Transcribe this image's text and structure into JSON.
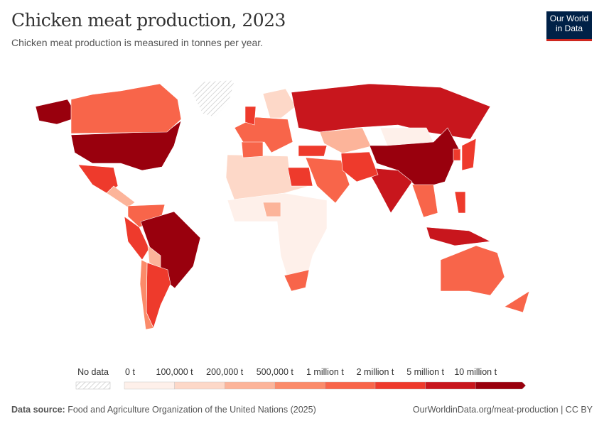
{
  "header": {
    "title": "Chicken meat production, 2023",
    "subtitle": "Chicken meat production is measured in tonnes per year.",
    "logo": "Our World in Data"
  },
  "legend": {
    "no_data_label": "No data",
    "labels": [
      "0 t",
      "100,000 t",
      "200,000 t",
      "500,000 t",
      "1 million t",
      "2 million t",
      "5 million t",
      "10 million t"
    ],
    "colors": [
      "#fef0ea",
      "#fdd8c8",
      "#fcb49a",
      "#fb8b6a",
      "#f8654a",
      "#ee3a2c",
      "#c8161d",
      "#99000d"
    ],
    "no_data_color": "#e0e0e0"
  },
  "map": {
    "regions": [
      {
        "name": "united-states",
        "bin": 7
      },
      {
        "name": "alaska",
        "bin": 7
      },
      {
        "name": "canada",
        "bin": 4
      },
      {
        "name": "greenland",
        "bin": null
      },
      {
        "name": "mexico",
        "bin": 5
      },
      {
        "name": "central-america",
        "bin": 2
      },
      {
        "name": "colombia-venezuela",
        "bin": 4
      },
      {
        "name": "brazil",
        "bin": 7
      },
      {
        "name": "peru",
        "bin": 5
      },
      {
        "name": "bolivia",
        "bin": 2
      },
      {
        "name": "argentina",
        "bin": 5
      },
      {
        "name": "chile",
        "bin": 3
      },
      {
        "name": "europe",
        "bin": 4
      },
      {
        "name": "scandinavia",
        "bin": 1
      },
      {
        "name": "russia",
        "bin": 6
      },
      {
        "name": "kazakhstan",
        "bin": 2
      },
      {
        "name": "mongolia",
        "bin": 0
      },
      {
        "name": "china",
        "bin": 7
      },
      {
        "name": "india",
        "bin": 6
      },
      {
        "name": "middle-east",
        "bin": 4
      },
      {
        "name": "turkey",
        "bin": 5
      },
      {
        "name": "iran-pakistan",
        "bin": 5
      },
      {
        "name": "north-africa",
        "bin": 1
      },
      {
        "name": "egypt",
        "bin": 5
      },
      {
        "name": "sub-saharan-africa",
        "bin": 0
      },
      {
        "name": "nigeria",
        "bin": 2
      },
      {
        "name": "south-africa",
        "bin": 4
      },
      {
        "name": "southeast-asia",
        "bin": 4
      },
      {
        "name": "indonesia",
        "bin": 6
      },
      {
        "name": "philippines",
        "bin": 5
      },
      {
        "name": "japan",
        "bin": 5
      },
      {
        "name": "korea",
        "bin": 5
      },
      {
        "name": "australia",
        "bin": 4
      },
      {
        "name": "new-zealand",
        "bin": 4
      },
      {
        "name": "united-kingdom",
        "bin": 5
      },
      {
        "name": "spain",
        "bin": 4
      }
    ]
  },
  "footer": {
    "source_label": "Data source:",
    "source": "Food and Agriculture Organization of the United Nations (2025)",
    "url": "OurWorldinData.org/meat-production | CC BY"
  }
}
